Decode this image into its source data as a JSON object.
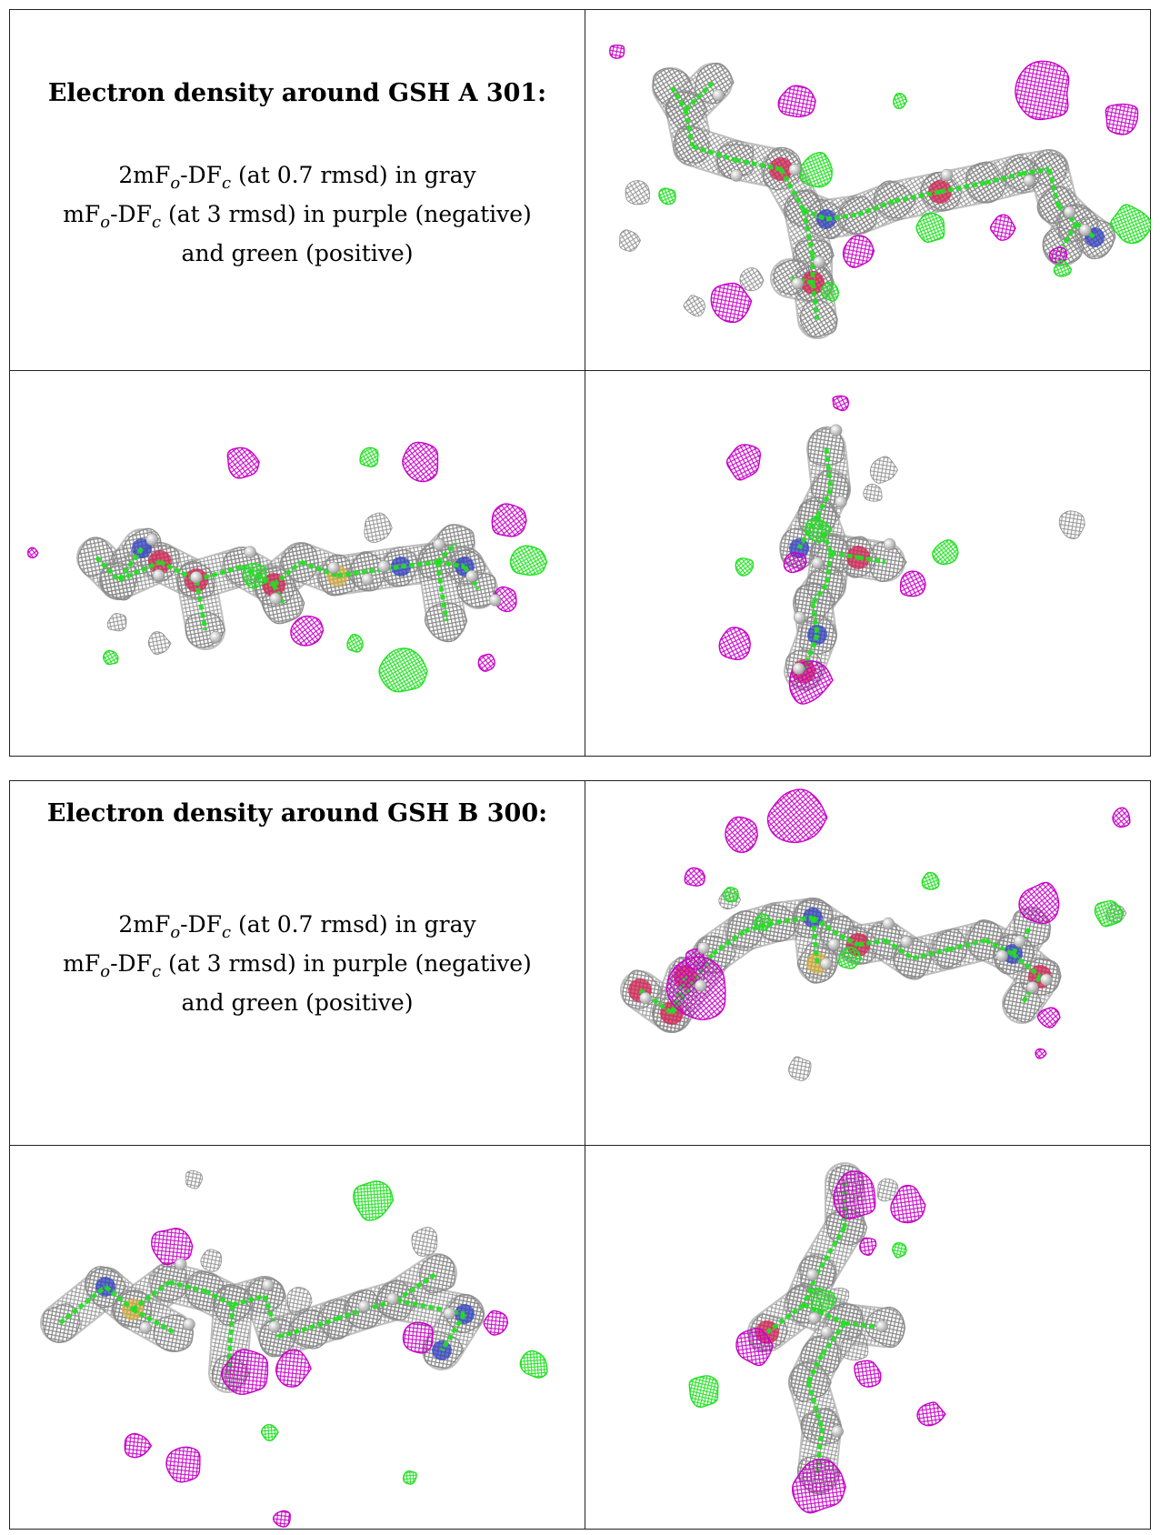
{
  "panels": [
    {
      "title": "Electron density around GSH A 301:",
      "lines": [
        {
          "pre": "2mF",
          "s1": "o",
          "mid": "-DF",
          "s2": "c",
          "post": " (at 0.7 rmsd) in gray"
        },
        {
          "pre": "mF",
          "s1": "o",
          "mid": "-DF",
          "s2": "c",
          "post": " (at 3 rmsd) in purple (negative)"
        },
        {
          "pre": "",
          "s1": "",
          "mid": "",
          "s2": "",
          "post": "and green (positive)"
        }
      ]
    },
    {
      "title": "Electron density around GSH B 300:",
      "lines": [
        {
          "pre": "2mF",
          "s1": "o",
          "mid": "-DF",
          "s2": "c",
          "post": " (at 0.7 rmsd) in gray"
        },
        {
          "pre": "mF",
          "s1": "o",
          "mid": "-DF",
          "s2": "c",
          "post": " (at 3 rmsd) in purple (negative)"
        },
        {
          "pre": "",
          "s1": "",
          "mid": "",
          "s2": "",
          "post": "and green (positive)"
        }
      ]
    }
  ],
  "colors": {
    "mesh_gray": "#8a8a8a",
    "negative_purple": "#c800c8",
    "positive_green": "#22e022",
    "atom_white": "#f2f2f2",
    "oxygen_red": "#d22050",
    "nitrogen_blue": "#3040c0",
    "sulfur_yellow": "#d8b040"
  }
}
